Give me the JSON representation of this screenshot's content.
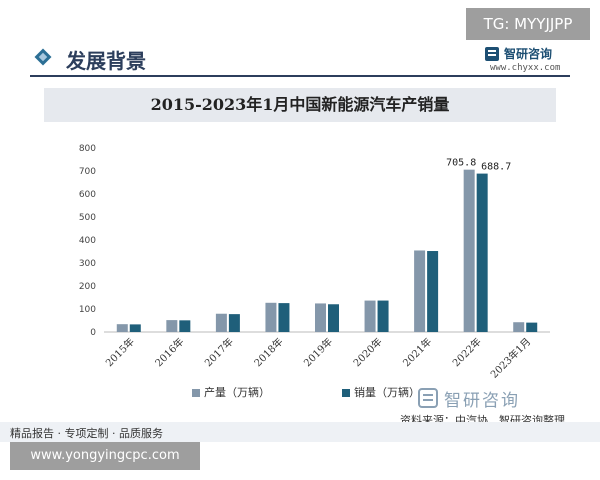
{
  "overlay": {
    "tag": "TG: MYYJJPP",
    "url": "www.yongyingcpc.com"
  },
  "section": {
    "title": "发展背景"
  },
  "brand": {
    "name": "智研咨询",
    "url": "www.chyxx.com"
  },
  "footer": {
    "text": "精品报告 · 专项定制 · 品质服务",
    "source_logo": "智研咨询",
    "source_note": "资料来源：中汽协、智研咨询整理"
  },
  "colors": {
    "production": "#8497aa",
    "sales": "#1f5f7a",
    "header": "#2c3e5c"
  },
  "chart_data": {
    "type": "bar",
    "title": "2015-2023年1月中国新能源汽车产销量",
    "categories": [
      "2015年",
      "2016年",
      "2017年",
      "2018年",
      "2019年",
      "2020年",
      "2021年",
      "2022年",
      "2023年1月"
    ],
    "series": [
      {
        "name": "产量（万辆）",
        "values": [
          34.0,
          51.7,
          79.4,
          127.0,
          124.2,
          136.6,
          354.5,
          705.8,
          42.5
        ]
      },
      {
        "name": "销量（万辆）",
        "values": [
          33.1,
          50.7,
          77.7,
          125.6,
          120.6,
          136.7,
          352.1,
          688.7,
          40.8
        ]
      }
    ],
    "data_labels": {
      "2022年": [
        "705.8",
        "688.7"
      ]
    },
    "yticks": [
      0,
      100,
      200,
      300,
      400,
      500,
      600,
      700,
      800
    ],
    "ylim": [
      0,
      800
    ],
    "legend_position": "bottom",
    "grid": false
  }
}
